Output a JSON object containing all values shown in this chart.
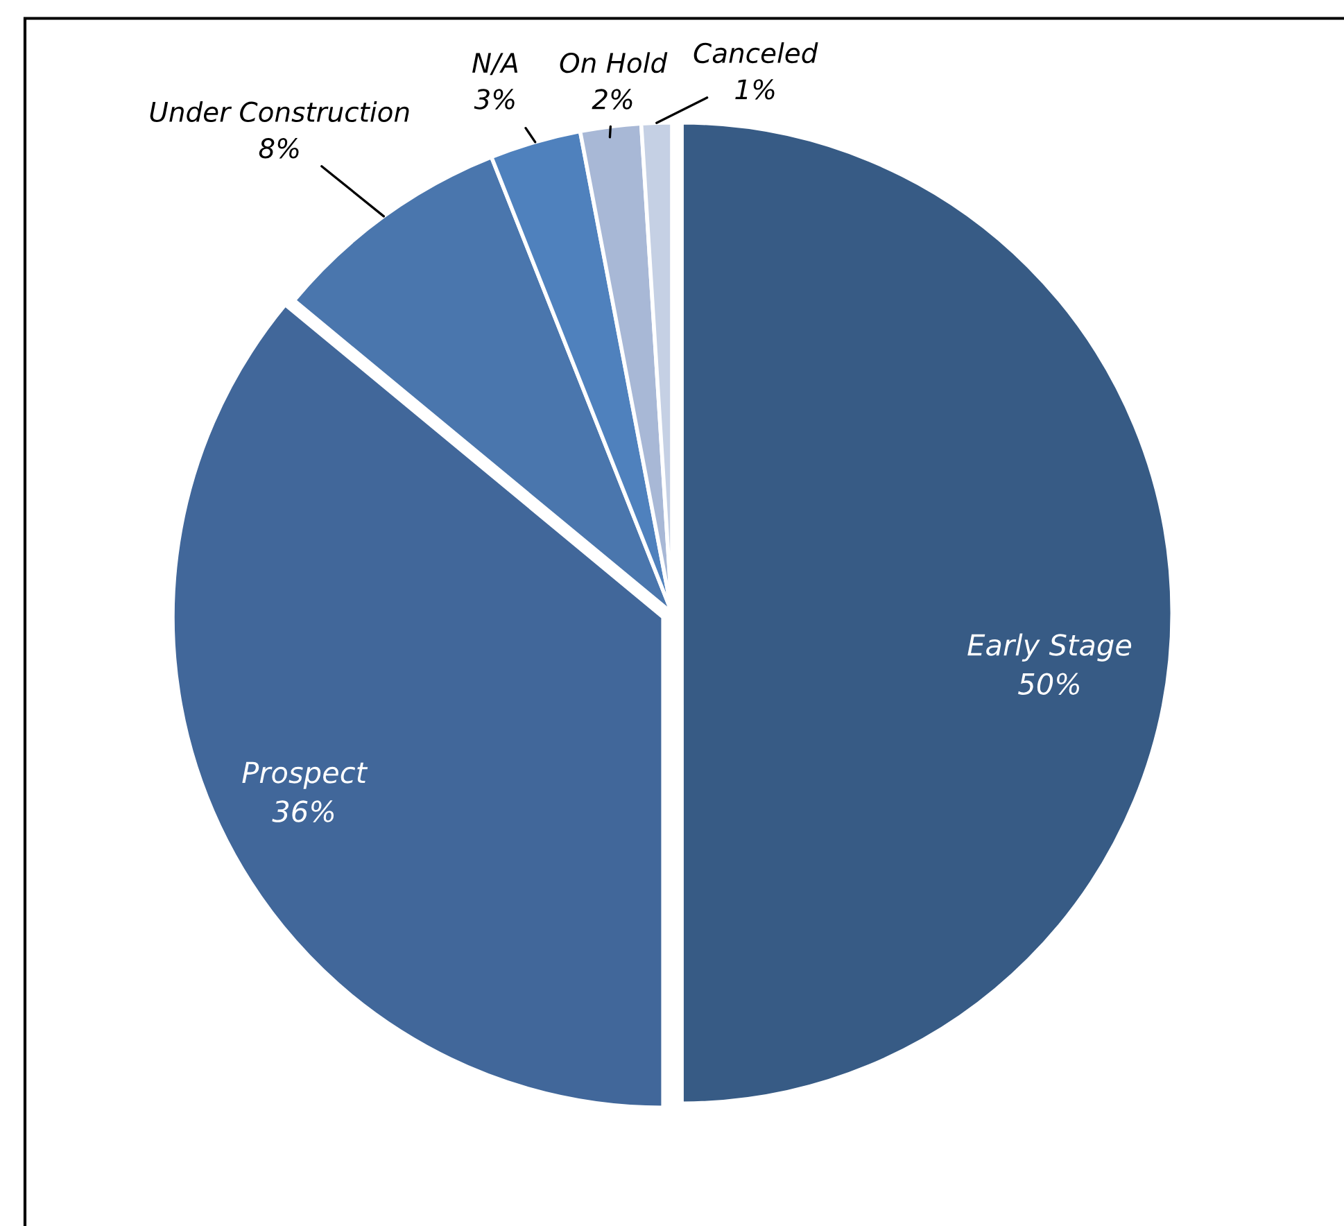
{
  "chart_data": {
    "type": "pie",
    "categories": [
      "Early Stage",
      "Prospect",
      "Under Construction",
      "N/A",
      "On Hold",
      "Canceled"
    ],
    "values": [
      50,
      36,
      8,
      3,
      2,
      1
    ],
    "value_labels": [
      "50%",
      "36%",
      "8%",
      "3%",
      "2%",
      "1%"
    ],
    "colors": [
      "#375b85",
      "#41679a",
      "#4a76ad",
      "#4f81bd",
      "#a8b8d6",
      "#c5d0e4"
    ],
    "legend": false
  }
}
